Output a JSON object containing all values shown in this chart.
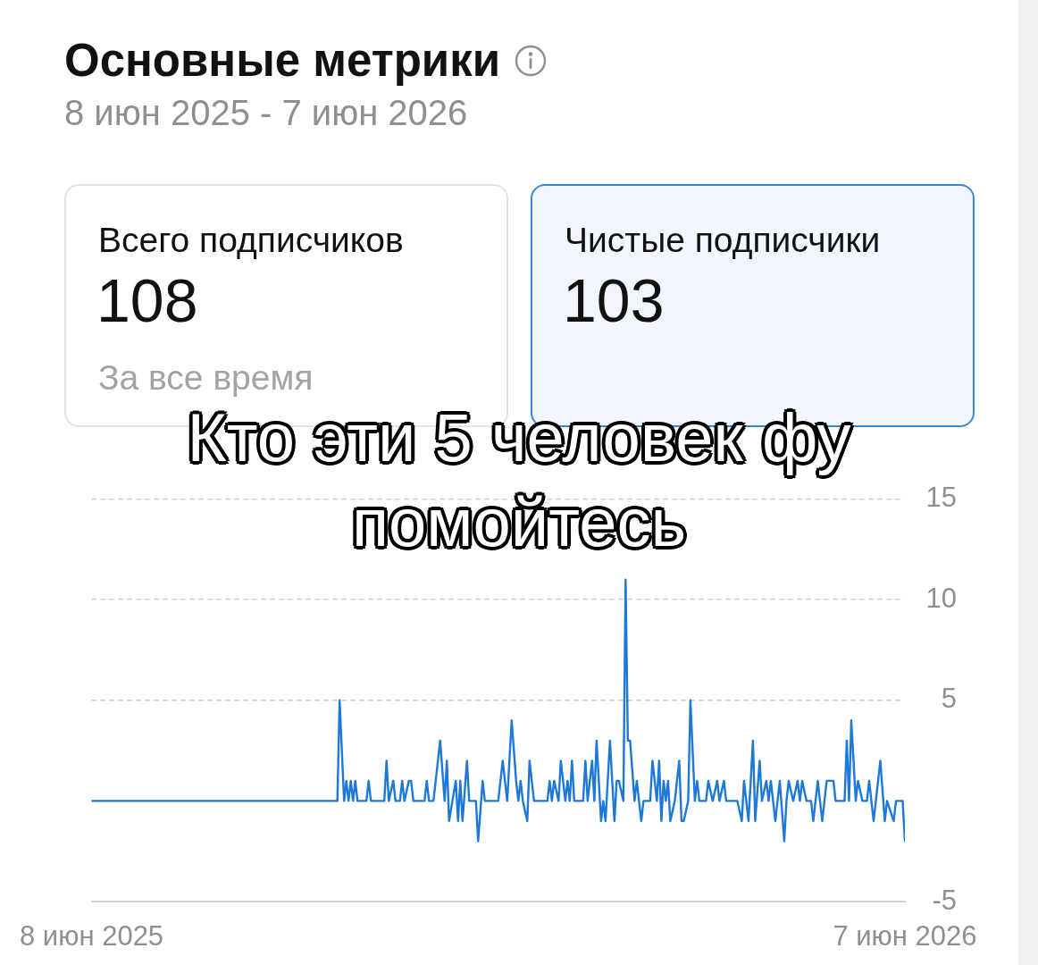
{
  "chart_data": [
    {
      "type": "other",
      "title": "Основные метрики",
      "subtitle": "8 июн 2025 - 7 июн 2026",
      "categories": [
        "Всего подписчиков",
        "Чистые подписчики"
      ],
      "values": [
        108,
        103
      ],
      "data_labels": true,
      "annotations": [
        "За все время"
      ]
    },
    {
      "type": "line",
      "color": "#1e78d7",
      "grid": "y",
      "xlim": [
        "2025-06-08",
        "2026-06-07"
      ],
      "xticks": [
        {
          "value": "2025-06-08",
          "label": "8 июн 2025"
        },
        {
          "value": "2026-06-07",
          "label": "7 июн 2026"
        }
      ],
      "ylim": [
        -5,
        15
      ],
      "yticks": [
        -5,
        5,
        10,
        15
      ],
      "annotations": [
        "Кто эти 5 человек фу помойтесь"
      ],
      "x": [
        "2025-06-08",
        "2025-09-26",
        "2025-09-27",
        "2025-09-29",
        "2025-09-30",
        "2025-10-01",
        "2025-10-02",
        "2025-10-03",
        "2025-10-04",
        "2025-10-05",
        "2025-10-09",
        "2025-10-10",
        "2025-10-11",
        "2025-10-17",
        "2025-10-18",
        "2025-10-19",
        "2025-10-21",
        "2025-10-22",
        "2025-10-24",
        "2025-10-25",
        "2025-10-26",
        "2025-10-28",
        "2025-10-29",
        "2025-10-30",
        "2025-11-04",
        "2025-11-05",
        "2025-11-06",
        "2025-11-08",
        "2025-11-11",
        "2025-11-13",
        "2025-11-14",
        "2025-11-15",
        "2025-11-18",
        "2025-11-19",
        "2025-11-20",
        "2025-11-21",
        "2025-11-23",
        "2025-11-24",
        "2025-11-27",
        "2025-11-28",
        "2025-11-30",
        "2025-12-01",
        "2025-12-07",
        "2025-12-09",
        "2025-12-11",
        "2025-12-13",
        "2025-12-15",
        "2025-12-16",
        "2025-12-17",
        "2025-12-18",
        "2025-12-20",
        "2025-12-21",
        "2025-12-23",
        "2025-12-29",
        "2025-12-30",
        "2025-12-31",
        "2026-01-01",
        "2026-01-03",
        "2026-01-04",
        "2026-01-06",
        "2026-01-07",
        "2026-01-08",
        "2026-01-09",
        "2026-01-10",
        "2026-01-14",
        "2026-01-15",
        "2026-01-16",
        "2026-01-17",
        "2026-01-18",
        "2026-01-19",
        "2026-01-20",
        "2026-01-22",
        "2026-01-23",
        "2026-01-24",
        "2026-01-26",
        "2026-01-28",
        "2026-01-29",
        "2026-01-30",
        "2026-02-01",
        "2026-02-02",
        "2026-02-03",
        "2026-02-04",
        "2026-02-06",
        "2026-02-07",
        "2026-02-09",
        "2026-02-10",
        "2026-02-13",
        "2026-02-14",
        "2026-02-16",
        "2026-02-17",
        "2026-02-18",
        "2026-02-19",
        "2026-02-20",
        "2026-02-21",
        "2026-02-22",
        "2026-02-24",
        "2026-02-26",
        "2026-02-27",
        "2026-02-28",
        "2026-03-02",
        "2026-03-03",
        "2026-03-05",
        "2026-03-06",
        "2026-03-07",
        "2026-03-10",
        "2026-03-11",
        "2026-03-13",
        "2026-03-15",
        "2026-03-16",
        "2026-03-18",
        "2026-03-19",
        "2026-03-24",
        "2026-03-26",
        "2026-03-27",
        "2026-03-29",
        "2026-03-31",
        "2026-04-01",
        "2026-04-03",
        "2026-04-04",
        "2026-04-06",
        "2026-04-07",
        "2026-04-08",
        "2026-04-09",
        "2026-04-10",
        "2026-04-12",
        "2026-04-14",
        "2026-04-15",
        "2026-04-16",
        "2026-04-18",
        "2026-04-20",
        "2026-04-21",
        "2026-04-22",
        "2026-04-24",
        "2026-04-26",
        "2026-04-27",
        "2026-04-28",
        "2026-04-29",
        "2026-05-01",
        "2026-05-02",
        "2026-05-03",
        "2026-05-06",
        "2026-05-07",
        "2026-05-11",
        "2026-05-12",
        "2026-05-13",
        "2026-05-14",
        "2026-05-16",
        "2026-05-17",
        "2026-05-19",
        "2026-05-21",
        "2026-05-22",
        "2026-05-24",
        "2026-05-27",
        "2026-05-29",
        "2026-05-30",
        "2026-06-02",
        "2026-06-03",
        "2026-06-06",
        "2026-06-07"
      ],
      "values": [
        0,
        0,
        5,
        0,
        1,
        0,
        1,
        0,
        1,
        0,
        0,
        1,
        0,
        0,
        2,
        0,
        1,
        0,
        0,
        1,
        0,
        1,
        1,
        0,
        0,
        1,
        0,
        0,
        3,
        0,
        2,
        -1,
        1,
        -1,
        1,
        -1,
        2,
        0,
        0,
        -2,
        1,
        0,
        0,
        2,
        0,
        4,
        1,
        0,
        1,
        0,
        -1,
        2,
        0,
        0,
        1,
        0,
        1,
        0,
        2,
        0,
        1,
        0,
        2,
        0,
        0,
        2,
        0,
        1,
        2,
        0,
        3,
        -1,
        0,
        -1,
        3,
        -1,
        1,
        1,
        0,
        11,
        3,
        3,
        0,
        1,
        -1,
        0,
        0,
        2,
        0,
        2,
        -1,
        1,
        0,
        1,
        -1,
        0,
        2,
        -1,
        -1,
        0,
        5,
        0,
        1,
        0,
        0,
        1,
        0,
        1,
        0,
        1,
        0,
        0,
        -1,
        1,
        -1,
        3,
        -1,
        2,
        0,
        1,
        0,
        1,
        0,
        -1,
        1,
        -2,
        0,
        1,
        0,
        1,
        0,
        1,
        0,
        0,
        -1,
        0,
        1,
        -1,
        0,
        1,
        1,
        0,
        0,
        3,
        0,
        4,
        0,
        1,
        0,
        0,
        1,
        -1,
        2,
        -1,
        0,
        -1,
        0,
        0,
        -2
      ]
    }
  ]
}
